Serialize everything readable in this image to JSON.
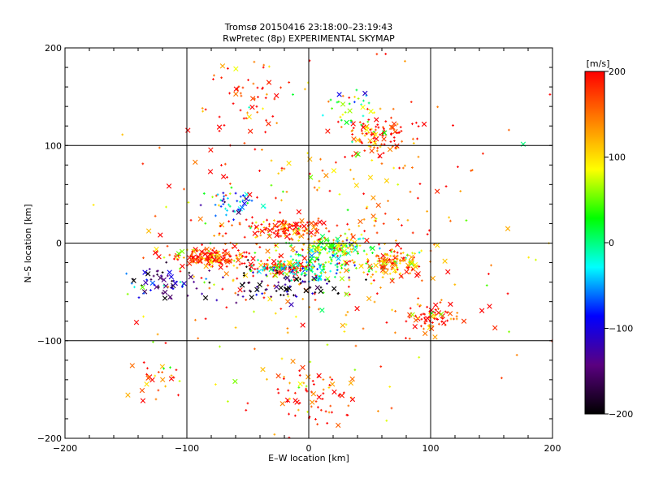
{
  "chart_data": {
    "type": "scatter",
    "title": "Tromsø 20150416 23:18:00–23:19:43",
    "subtitle": "RwPretec (8p) EXPERIMENTAL SKYMAP",
    "xlabel": "E–W location [km]",
    "ylabel": "N–S location [km]",
    "xlim": [
      -200,
      200
    ],
    "ylim": [
      -200,
      200
    ],
    "xticks": [
      -200,
      -100,
      0,
      100,
      200
    ],
    "yticks": [
      -200,
      -100,
      0,
      100,
      200
    ],
    "grid": true,
    "colorbar": {
      "label": "[m/s]",
      "min": -200,
      "max": 200,
      "ticks": [
        200,
        100,
        0,
        -100,
        -200
      ],
      "stops": [
        "#ff0000",
        "#ff8000",
        "#ffff00",
        "#00ff00",
        "#00ffff",
        "#0000ff",
        "#5a0080",
        "#000000"
      ]
    },
    "markers": [
      "plus",
      "cross"
    ],
    "clusters": [
      {
        "cx": -80,
        "cy": -15,
        "rx": 25,
        "ry": 8,
        "n": 180,
        "vel": 180
      },
      {
        "cx": -25,
        "cy": -25,
        "rx": 18,
        "ry": 6,
        "n": 90,
        "vel": 190
      },
      {
        "cx": 0,
        "cy": -25,
        "rx": 30,
        "ry": 12,
        "n": 150,
        "vel": 0
      },
      {
        "cx": 20,
        "cy": -5,
        "rx": 25,
        "ry": 8,
        "n": 120,
        "vel": 40
      },
      {
        "cx": -20,
        "cy": 15,
        "rx": 30,
        "ry": 8,
        "n": 120,
        "vel": 190
      },
      {
        "cx": 70,
        "cy": -20,
        "rx": 25,
        "ry": 12,
        "n": 120,
        "vel": 120
      },
      {
        "cx": 55,
        "cy": 110,
        "rx": 25,
        "ry": 20,
        "n": 110,
        "vel": 180
      },
      {
        "cx": 35,
        "cy": 140,
        "rx": 15,
        "ry": 15,
        "n": 30,
        "vel": 20
      },
      {
        "cx": 100,
        "cy": -75,
        "rx": 20,
        "ry": 12,
        "n": 70,
        "vel": 190
      },
      {
        "cx": -60,
        "cy": 40,
        "rx": 20,
        "ry": 10,
        "n": 45,
        "vel": -60
      },
      {
        "cx": -50,
        "cy": 150,
        "rx": 40,
        "ry": 35,
        "n": 50,
        "vel": 190
      },
      {
        "cx": 0,
        "cy": -160,
        "rx": 30,
        "ry": 25,
        "n": 70,
        "vel": 190
      },
      {
        "cx": -120,
        "cy": -40,
        "rx": 25,
        "ry": 15,
        "n": 60,
        "vel": -120
      },
      {
        "cx": -125,
        "cy": -135,
        "rx": 15,
        "ry": 20,
        "n": 25,
        "vel": 160
      },
      {
        "cx": 0,
        "cy": 0,
        "rx": 130,
        "ry": 130,
        "n": 400,
        "vel": 150
      },
      {
        "cx": -20,
        "cy": -45,
        "rx": 40,
        "ry": 15,
        "n": 80,
        "vel": -180
      }
    ]
  }
}
